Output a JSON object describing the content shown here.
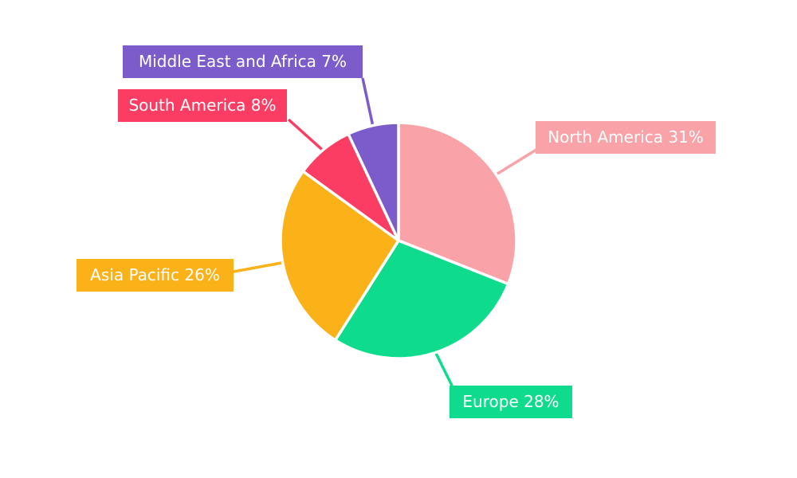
{
  "chart_data": {
    "type": "pie",
    "title": "",
    "legend": "none",
    "background": "#ffffff",
    "start_angle": "12-oclock",
    "direction": "clockwise",
    "label_style": "boxed-callouts",
    "separator_color": "#ffffff",
    "slices": [
      {
        "label": "North America",
        "value": 31,
        "display": "North America 31%",
        "color": "#F9A2A8"
      },
      {
        "label": "Europe",
        "value": 28,
        "display": "Europe 28%",
        "color": "#0EDC8C"
      },
      {
        "label": "Asia Pacific",
        "value": 26,
        "display": "Asia Pacific 26%",
        "color": "#FBB118"
      },
      {
        "label": "South America",
        "value": 8,
        "display": "South America 8%",
        "color": "#FB3D63"
      },
      {
        "label": "Middle East and Africa",
        "value": 7,
        "display": "Middle East and Africa 7%",
        "color": "#7B5CCA"
      }
    ]
  }
}
